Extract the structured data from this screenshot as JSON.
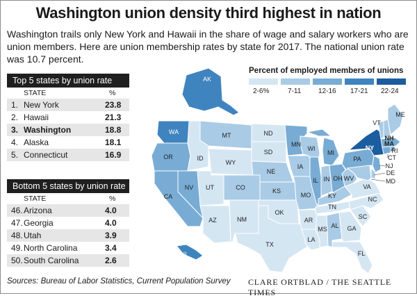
{
  "title": "Washington union density third highest in nation",
  "subtitle": "Washington trails only New York and Hawaii in the share of wage and salary workers who are union members. Here are union membership rates by state for 2017. The national union rate was 10.7 percent.",
  "top_table": {
    "heading": "Top 5 states by union rate",
    "col_state": "STATE",
    "col_pct": "%",
    "rows": [
      {
        "rank": "1.",
        "state": "New York",
        "pct": "23.8"
      },
      {
        "rank": "2.",
        "state": "Hawaii",
        "pct": "21.3"
      },
      {
        "rank": "3.",
        "state": "Washington",
        "pct": "18.8"
      },
      {
        "rank": "4.",
        "state": "Alaska",
        "pct": "18.1"
      },
      {
        "rank": "5.",
        "state": "Connecticut",
        "pct": "16.9"
      }
    ]
  },
  "bottom_table": {
    "heading": "Bottom 5 states by union rate",
    "col_state": "STATE",
    "col_pct": "%",
    "rows": [
      {
        "rank": "46.",
        "state": "Arizona",
        "pct": "4.0"
      },
      {
        "rank": "47.",
        "state": "Georgia",
        "pct": "4.0"
      },
      {
        "rank": "48.",
        "state": "Utah",
        "pct": "3.9"
      },
      {
        "rank": "49.",
        "state": "North Carolina",
        "pct": "3.4"
      },
      {
        "rank": "50.",
        "state": "South Carolina",
        "pct": "2.6"
      }
    ]
  },
  "legend": {
    "title": "Percent of employed members of unions",
    "bins": [
      {
        "label": "2-6%",
        "color": "#d5e6f3"
      },
      {
        "label": "7-11",
        "color": "#a9cbe6"
      },
      {
        "label": "12-16",
        "color": "#78acd4"
      },
      {
        "label": "17-21",
        "color": "#3f84bf"
      },
      {
        "label": "22-24",
        "color": "#1b5d9e"
      }
    ]
  },
  "chart_data": {
    "type": "choropleth",
    "title": "Percent of employed members of unions",
    "bins": [
      "2-6%",
      "7-11",
      "12-16",
      "17-21",
      "22-24"
    ],
    "states": [
      {
        "state": "AK",
        "bin": 3
      },
      {
        "state": "HI",
        "bin": 3
      },
      {
        "state": "WA",
        "bin": 3
      },
      {
        "state": "OR",
        "bin": 2
      },
      {
        "state": "CA",
        "bin": 2
      },
      {
        "state": "NV",
        "bin": 2
      },
      {
        "state": "ID",
        "bin": 0
      },
      {
        "state": "MT",
        "bin": 1
      },
      {
        "state": "WY",
        "bin": 0
      },
      {
        "state": "UT",
        "bin": 0
      },
      {
        "state": "AZ",
        "bin": 0
      },
      {
        "state": "CO",
        "bin": 1
      },
      {
        "state": "NM",
        "bin": 0
      },
      {
        "state": "ND",
        "bin": 0
      },
      {
        "state": "SD",
        "bin": 0
      },
      {
        "state": "NE",
        "bin": 1
      },
      {
        "state": "KS",
        "bin": 1
      },
      {
        "state": "OK",
        "bin": 0
      },
      {
        "state": "TX",
        "bin": 0
      },
      {
        "state": "MN",
        "bin": 2
      },
      {
        "state": "IA",
        "bin": 1
      },
      {
        "state": "MO",
        "bin": 1
      },
      {
        "state": "AR",
        "bin": 0
      },
      {
        "state": "LA",
        "bin": 0
      },
      {
        "state": "WI",
        "bin": 1
      },
      {
        "state": "IL",
        "bin": 2
      },
      {
        "state": "MI",
        "bin": 2
      },
      {
        "state": "IN",
        "bin": 1
      },
      {
        "state": "OH",
        "bin": 2
      },
      {
        "state": "KY",
        "bin": 1
      },
      {
        "state": "TN",
        "bin": 0
      },
      {
        "state": "MS",
        "bin": 0
      },
      {
        "state": "AL",
        "bin": 1
      },
      {
        "state": "GA",
        "bin": 0
      },
      {
        "state": "FL",
        "bin": 0
      },
      {
        "state": "SC",
        "bin": 0
      },
      {
        "state": "NC",
        "bin": 0
      },
      {
        "state": "VA",
        "bin": 0
      },
      {
        "state": "WV",
        "bin": 1
      },
      {
        "state": "PA",
        "bin": 2
      },
      {
        "state": "NY",
        "bin": 4
      },
      {
        "state": "NJ",
        "bin": 2
      },
      {
        "state": "DE",
        "bin": 1
      },
      {
        "state": "MD",
        "bin": 1
      },
      {
        "state": "CT",
        "bin": 2
      },
      {
        "state": "RI",
        "bin": 2
      },
      {
        "state": "MA",
        "bin": 2
      },
      {
        "state": "VT",
        "bin": 1
      },
      {
        "state": "NH",
        "bin": 1
      },
      {
        "state": "ME",
        "bin": 1
      }
    ]
  },
  "source": "Sources: Bureau of Labor Statistics, Current Population Survey",
  "credit": "CLARE ORTBLAD / THE SEATTLE TIMES",
  "colors": {
    "border": "#ffffff",
    "header_bg": "#1f1f1f",
    "row_shade": "#e6e6e6"
  }
}
